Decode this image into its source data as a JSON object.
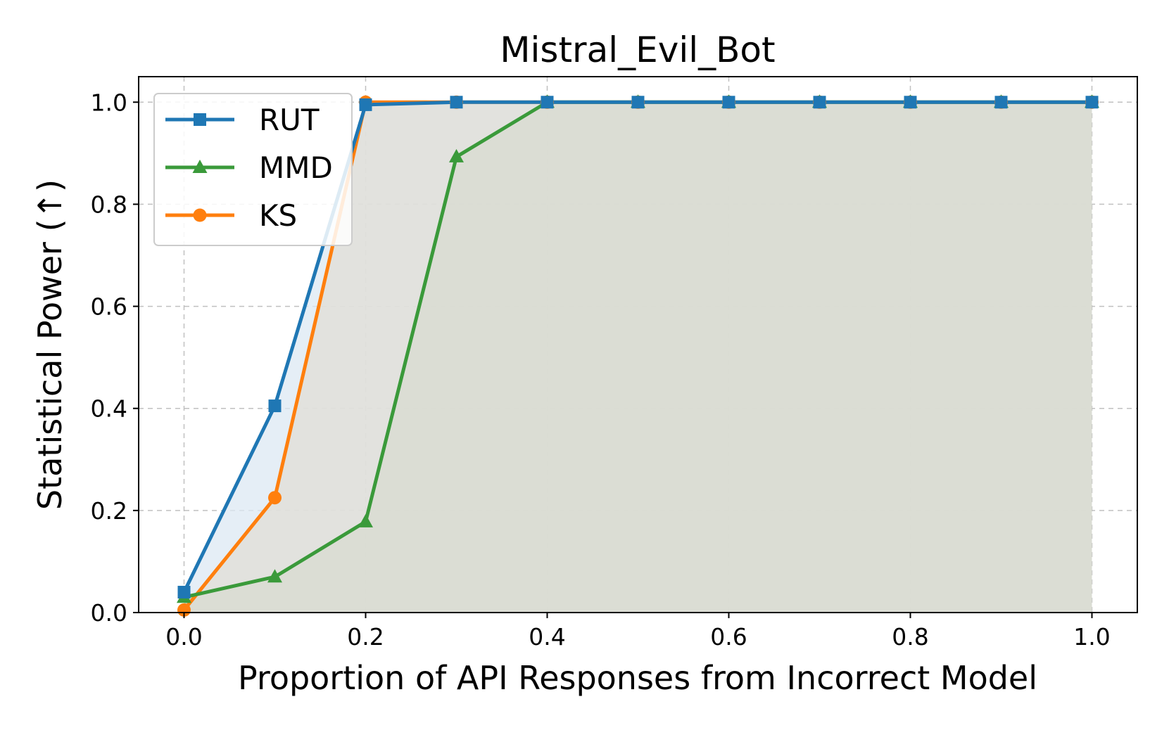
{
  "chart_data": {
    "type": "line",
    "title": "Mistral_Evil_Bot",
    "xlabel": "Proportion of API Responses from Incorrect Model",
    "ylabel": "Statistical Power (↑)",
    "xlim": [
      -0.05,
      1.05
    ],
    "ylim": [
      0.0,
      1.05
    ],
    "x_ticks": [
      "0.0",
      "0.2",
      "0.4",
      "0.6",
      "0.8",
      "1.0"
    ],
    "y_ticks": [
      "0.0",
      "0.2",
      "0.4",
      "0.6",
      "0.8",
      "1.0"
    ],
    "grid": true,
    "legend_position": "top-left",
    "x": [
      0.0,
      0.1,
      0.2,
      0.3,
      0.4,
      0.5,
      0.6,
      0.7,
      0.8,
      0.9,
      1.0
    ],
    "series": [
      {
        "name": "RUT",
        "color": "#1f77b4",
        "marker": "square",
        "fill": "#dce8f3",
        "values": [
          0.04,
          0.405,
          0.995,
          1.0,
          1.0,
          1.0,
          1.0,
          1.0,
          1.0,
          1.0,
          1.0
        ]
      },
      {
        "name": "MMD",
        "color": "#3a9a3a",
        "marker": "triangle",
        "fill": "#c2d4bf",
        "values": [
          0.03,
          0.07,
          0.178,
          0.893,
          1.0,
          1.0,
          1.0,
          1.0,
          1.0,
          1.0,
          1.0
        ]
      },
      {
        "name": "KS",
        "color": "#ff7f0e",
        "marker": "circle",
        "fill": "#e0ddd5",
        "values": [
          0.005,
          0.225,
          1.0,
          1.0,
          1.0,
          1.0,
          1.0,
          1.0,
          1.0,
          1.0,
          1.0
        ]
      }
    ]
  }
}
